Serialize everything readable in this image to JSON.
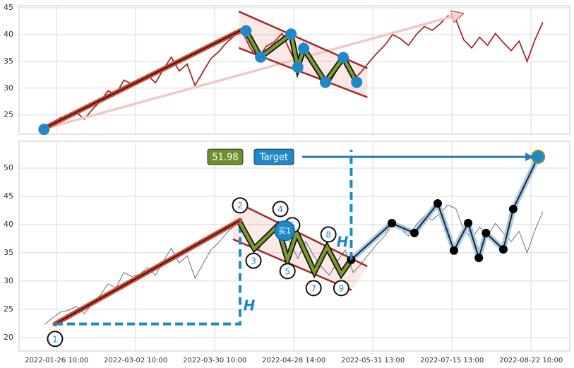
{
  "chart_data": [
    {
      "type": "line",
      "xlim": [
        -9.5,
        129.8
      ],
      "ylim": [
        21.4,
        45.4
      ],
      "yticks": [
        25,
        30,
        35,
        40,
        45
      ],
      "grid": true,
      "series": [
        {
          "color": "#a52a2a",
          "x": [
            -3,
            -1,
            1,
            3,
            5,
            7,
            9,
            11,
            13,
            15,
            17,
            19,
            21,
            23,
            25,
            27,
            29,
            31,
            33,
            35,
            37,
            39,
            41,
            43,
            45,
            47,
            49,
            51,
            53,
            55,
            57,
            59,
            61,
            63,
            65,
            67,
            69,
            71,
            73,
            75,
            77,
            79,
            81,
            83,
            85,
            87,
            89,
            91,
            93,
            95,
            97,
            99,
            101,
            103,
            105,
            107,
            109,
            111,
            113,
            115,
            117,
            119,
            121,
            123
          ],
          "values": [
            22.3,
            23.5,
            24.5,
            24.8,
            25.5,
            24.2,
            26.0,
            27.5,
            29.5,
            28.8,
            31.5,
            30.8,
            31.2,
            32.4,
            31.0,
            33.5,
            35.8,
            33.2,
            34.5,
            30.5,
            33.0,
            35.5,
            36.8,
            38.5,
            39.8,
            40.5,
            37.5,
            35.5,
            37.8,
            38.6,
            40.2,
            37.0,
            34.0,
            37.0,
            34.5,
            32.5,
            31.0,
            33.5,
            35.5,
            31.5,
            33.0,
            34.8,
            36.5,
            38.0,
            40.0,
            39.2,
            38.0,
            40.0,
            41.5,
            40.8,
            42.0,
            43.5,
            42.8,
            39.0,
            37.5,
            39.5,
            38.0,
            40.2,
            38.5,
            37.0,
            38.8,
            35.0,
            39.0,
            42.3
          ]
        }
      ],
      "trend": {
        "x": [
          -3.2,
          46.4
        ],
        "y": [
          22.5,
          40.7
        ]
      },
      "arrow": {
        "x": [
          -3.2,
          102.7
        ],
        "y": [
          22.4,
          43.9
        ]
      },
      "channel": {
        "upper": {
          "x": [
            46.1,
            78.6
          ],
          "y": [
            44.3,
            33.7
          ]
        },
        "lower": {
          "x": [
            46.1,
            78.6
          ],
          "y": [
            37.5,
            28.3
          ]
        }
      },
      "start": {
        "x": -3.2,
        "y": 22.3
      },
      "pivots": {
        "color": "#1f88c9",
        "x": [
          47.9,
          51.6,
          59.3,
          61,
          62.5,
          68,
          72.5,
          75.9
        ],
        "y": [
          40.7,
          35.8,
          40.1,
          33.9,
          37.4,
          31.1,
          35.7,
          31.1
        ]
      }
    },
    {
      "type": "line",
      "xlim": [
        -9.5,
        129.8
      ],
      "ylim": [
        17.6,
        54.75
      ],
      "yticks": [
        20,
        25,
        30,
        35,
        40,
        45,
        50
      ],
      "grid": true,
      "xticks": [
        {
          "value": 0,
          "label": "2022-01-26 10:00"
        },
        {
          "value": 20,
          "label": "2022-03-02 10:00"
        },
        {
          "value": 40,
          "label": "2022-03-30 10:00"
        },
        {
          "value": 60,
          "label": "2022-04-28 14:00"
        },
        {
          "value": 80,
          "label": "2022-05-31 13:00"
        },
        {
          "value": 100,
          "label": "2022-07-15 13:00"
        },
        {
          "value": 120,
          "label": "2022-08-22 10:00"
        }
      ],
      "price_color": "#5a6070",
      "trend": {
        "x": [
          -0.4,
          46.4
        ],
        "y": [
          22.4,
          40.75
        ]
      },
      "channel": {
        "upper": {
          "x": [
            44.6,
            78.6
          ],
          "y": [
            44.25,
            32.6
          ]
        },
        "lower": {
          "x": [
            44.6,
            74.6
          ],
          "y": [
            37.4,
            28.4
          ]
        }
      },
      "zigzag": {
        "x": [
          46.4,
          50,
          55.9,
          58.4,
          60.7,
          65.2,
          68.4,
          72,
          74.5
        ],
        "y": [
          40.25,
          35.75,
          39.75,
          33.75,
          38.5,
          31.6,
          36,
          31.25,
          33.75
        ]
      },
      "projection": {
        "x": [
          74.5,
          84.8,
          90.5,
          96.4,
          100.5,
          104.1,
          106.8,
          108.6,
          113,
          115.5,
          121.8
        ],
        "y": [
          33.75,
          40.25,
          38.5,
          43.75,
          35.4,
          40.25,
          34.1,
          38.5,
          35.6,
          42.75,
          52
        ]
      },
      "h_lines": {
        "x": [
          -0.4,
          46.4,
          46.4
        ],
        "y": [
          22.4,
          22.4,
          40.75
        ]
      },
      "target_line": {
        "x": [
          74.5,
          74.5
        ],
        "y": [
          33.75,
          53.25
        ]
      },
      "target_arrow": {
        "x": [
          62.1,
          120.5
        ]
      },
      "target_price": 51.98,
      "target_label": "Target",
      "buy_label": "买1",
      "buy": {
        "x": 57.7,
        "y": 38.9
      },
      "h_label": "H",
      "points": [
        {
          "label": "1",
          "x": -0.4,
          "y": 19.75
        },
        {
          "label": "2",
          "x": 46.4,
          "y": 43.4
        },
        {
          "label": "3",
          "x": 49.8,
          "y": 33.6
        },
        {
          "label": "4",
          "x": 56.6,
          "y": 42.75
        },
        {
          "label": "5",
          "x": 58.4,
          "y": 31.75
        },
        {
          "label": "6",
          "x": 59.6,
          "y": 39.9
        },
        {
          "label": "7",
          "x": 65,
          "y": 28.75
        },
        {
          "label": "8",
          "x": 68.75,
          "y": 38.25
        },
        {
          "label": "9",
          "x": 72,
          "y": 28.75
        }
      ]
    }
  ]
}
